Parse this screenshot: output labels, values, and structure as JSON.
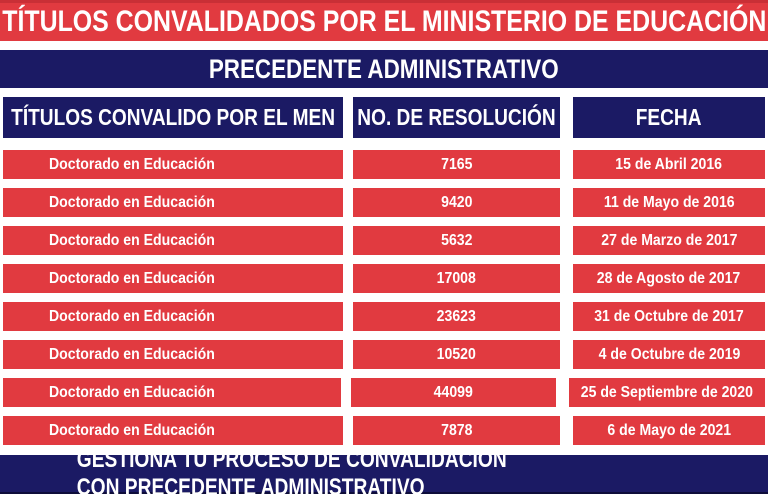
{
  "title": "TÍTULOS CONVALIDADOS POR EL MINISTERIO DE EDUCACIÓN",
  "subtitle": "PRECEDENTE ADMINISTRATIVO",
  "table": {
    "columns": [
      "TÍTULOS CONVALIDO POR EL MEN",
      "NO. DE RESOLUCIÓN",
      "FECHA"
    ],
    "rows": [
      {
        "titulo": "Doctorado en Educación",
        "resolucion": "7165",
        "fecha": "15 de Abril 2016"
      },
      {
        "titulo": "Doctorado en Educación",
        "resolucion": "9420",
        "fecha": "11 de Mayo de 2016"
      },
      {
        "titulo": "Doctorado en Educación",
        "resolucion": "5632",
        "fecha": "27 de Marzo de 2017"
      },
      {
        "titulo": "Doctorado en Educación",
        "resolucion": "17008",
        "fecha": "28 de Agosto de 2017"
      },
      {
        "titulo": "Doctorado en Educación",
        "resolucion": "23623",
        "fecha": "31 de Octubre de 2017"
      },
      {
        "titulo": "Doctorado en Educación",
        "resolucion": "10520",
        "fecha": "4 de Octubre de 2019"
      },
      {
        "titulo": "Doctorado en Educación",
        "resolucion": "44099",
        "fecha": "25 de Septiembre de 2020"
      },
      {
        "titulo": "Doctorado en Educación",
        "resolucion": "7878",
        "fecha": "6 de Mayo de 2021"
      }
    ]
  },
  "footer": {
    "prefix": "GESTIONA TU PROCESO DE CONVALIDACIÓN CON",
    "underlined": "PRECEDENTE ADMINISTRATIVO"
  },
  "colors": {
    "red": "#e13a40",
    "navy": "#1b1a64",
    "background": "#ffffff",
    "text": "#ffffff"
  }
}
